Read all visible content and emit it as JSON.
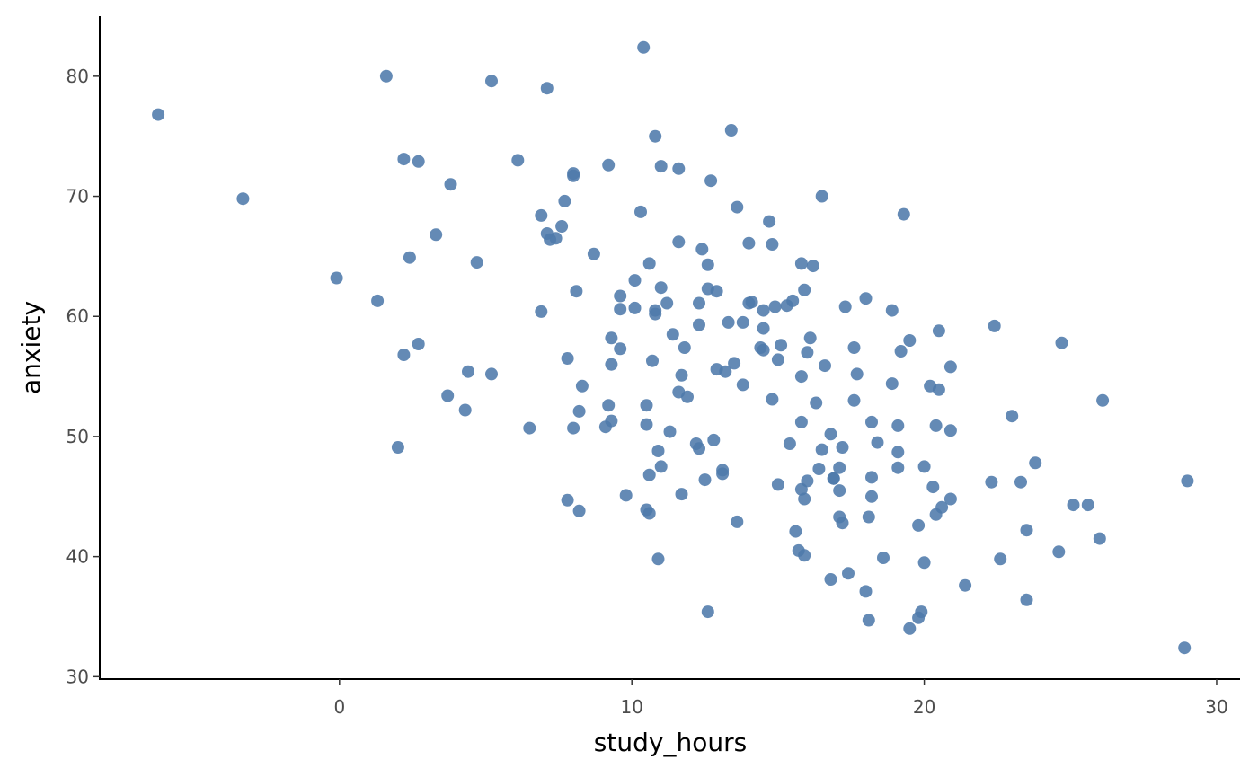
{
  "colors": {
    "point": "#4f7aab",
    "axis": "#000000",
    "tick_label": "#4d4d4d",
    "background": "#ffffff"
  },
  "chart_data": {
    "type": "scatter",
    "xlabel": "study_hours",
    "ylabel": "anxiety",
    "xlim": [
      -8.2,
      30.8
    ],
    "ylim": [
      29.8,
      85.0
    ],
    "xticks": [
      0,
      10,
      20,
      30
    ],
    "yticks": [
      30,
      40,
      50,
      60,
      70,
      80
    ],
    "grid": false,
    "points": [
      [
        -6.2,
        76.8
      ],
      [
        -3.3,
        69.8
      ],
      [
        -0.1,
        63.2
      ],
      [
        1.3,
        61.3
      ],
      [
        1.6,
        80.0
      ],
      [
        2.0,
        49.1
      ],
      [
        2.2,
        73.1
      ],
      [
        2.2,
        56.8
      ],
      [
        2.4,
        64.9
      ],
      [
        2.7,
        72.9
      ],
      [
        2.7,
        57.7
      ],
      [
        3.3,
        66.8
      ],
      [
        3.7,
        53.4
      ],
      [
        3.8,
        71.0
      ],
      [
        4.3,
        52.2
      ],
      [
        4.4,
        55.4
      ],
      [
        4.7,
        64.5
      ],
      [
        5.2,
        79.6
      ],
      [
        5.2,
        55.2
      ],
      [
        6.1,
        73.0
      ],
      [
        6.5,
        50.7
      ],
      [
        6.9,
        68.4
      ],
      [
        6.9,
        60.4
      ],
      [
        7.1,
        79.0
      ],
      [
        7.1,
        66.9
      ],
      [
        7.2,
        66.4
      ],
      [
        7.4,
        66.5
      ],
      [
        7.6,
        67.5
      ],
      [
        7.7,
        69.6
      ],
      [
        7.8,
        56.5
      ],
      [
        7.8,
        44.7
      ],
      [
        8.0,
        71.9
      ],
      [
        8.0,
        71.7
      ],
      [
        8.0,
        50.7
      ],
      [
        8.1,
        62.1
      ],
      [
        8.2,
        52.1
      ],
      [
        8.2,
        43.8
      ],
      [
        8.3,
        54.2
      ],
      [
        8.7,
        65.2
      ],
      [
        9.1,
        50.8
      ],
      [
        9.2,
        72.6
      ],
      [
        9.2,
        52.6
      ],
      [
        9.3,
        58.2
      ],
      [
        9.3,
        56.0
      ],
      [
        9.3,
        51.3
      ],
      [
        9.6,
        61.7
      ],
      [
        9.6,
        60.6
      ],
      [
        9.6,
        57.3
      ],
      [
        9.8,
        45.1
      ],
      [
        10.1,
        63.0
      ],
      [
        10.1,
        60.7
      ],
      [
        10.3,
        68.7
      ],
      [
        10.4,
        82.4
      ],
      [
        10.5,
        52.6
      ],
      [
        10.5,
        51.0
      ],
      [
        10.5,
        43.9
      ],
      [
        10.6,
        64.4
      ],
      [
        10.6,
        46.8
      ],
      [
        10.6,
        43.6
      ],
      [
        10.7,
        56.3
      ],
      [
        10.8,
        75.0
      ],
      [
        10.8,
        60.5
      ],
      [
        10.8,
        60.2
      ],
      [
        10.9,
        48.8
      ],
      [
        10.9,
        39.8
      ],
      [
        11.0,
        72.5
      ],
      [
        11.0,
        62.4
      ],
      [
        11.0,
        47.5
      ],
      [
        11.2,
        61.1
      ],
      [
        11.3,
        50.4
      ],
      [
        11.4,
        58.5
      ],
      [
        11.6,
        72.3
      ],
      [
        11.6,
        66.2
      ],
      [
        11.6,
        53.7
      ],
      [
        11.7,
        55.1
      ],
      [
        11.7,
        45.2
      ],
      [
        11.8,
        57.4
      ],
      [
        11.9,
        53.3
      ],
      [
        12.2,
        49.4
      ],
      [
        12.3,
        61.1
      ],
      [
        12.3,
        59.3
      ],
      [
        12.3,
        49.0
      ],
      [
        12.4,
        65.6
      ],
      [
        12.5,
        46.4
      ],
      [
        12.6,
        64.3
      ],
      [
        12.6,
        62.3
      ],
      [
        12.6,
        35.4
      ],
      [
        12.7,
        71.3
      ],
      [
        12.8,
        49.7
      ],
      [
        12.9,
        62.1
      ],
      [
        12.9,
        55.6
      ],
      [
        13.1,
        47.2
      ],
      [
        13.1,
        46.9
      ],
      [
        13.2,
        55.4
      ],
      [
        13.3,
        59.5
      ],
      [
        13.4,
        75.5
      ],
      [
        13.5,
        56.1
      ],
      [
        13.6,
        69.1
      ],
      [
        13.6,
        42.9
      ],
      [
        13.8,
        59.5
      ],
      [
        13.8,
        54.3
      ],
      [
        14.0,
        66.1
      ],
      [
        14.0,
        61.1
      ],
      [
        14.1,
        61.2
      ],
      [
        14.4,
        57.4
      ],
      [
        14.5,
        60.5
      ],
      [
        14.5,
        59.0
      ],
      [
        14.5,
        57.2
      ],
      [
        14.7,
        67.9
      ],
      [
        14.8,
        66.0
      ],
      [
        14.8,
        53.1
      ],
      [
        14.9,
        60.8
      ],
      [
        15.0,
        56.4
      ],
      [
        15.0,
        46.0
      ],
      [
        15.1,
        57.6
      ],
      [
        15.3,
        60.9
      ],
      [
        15.4,
        49.4
      ],
      [
        15.5,
        61.3
      ],
      [
        15.6,
        42.1
      ],
      [
        15.7,
        40.5
      ],
      [
        15.8,
        64.4
      ],
      [
        15.8,
        55.0
      ],
      [
        15.8,
        51.2
      ],
      [
        15.8,
        45.6
      ],
      [
        15.9,
        62.2
      ],
      [
        15.9,
        44.8
      ],
      [
        15.9,
        40.1
      ],
      [
        16.0,
        57.0
      ],
      [
        16.0,
        46.3
      ],
      [
        16.1,
        58.2
      ],
      [
        16.2,
        64.2
      ],
      [
        16.3,
        52.8
      ],
      [
        16.4,
        47.3
      ],
      [
        16.5,
        70.0
      ],
      [
        16.5,
        48.9
      ],
      [
        16.6,
        55.9
      ],
      [
        16.8,
        50.2
      ],
      [
        16.8,
        38.1
      ],
      [
        16.9,
        46.5
      ],
      [
        16.9,
        46.5
      ],
      [
        17.1,
        47.4
      ],
      [
        17.1,
        45.5
      ],
      [
        17.1,
        43.3
      ],
      [
        17.2,
        49.1
      ],
      [
        17.2,
        42.8
      ],
      [
        17.3,
        60.8
      ],
      [
        17.4,
        38.6
      ],
      [
        17.6,
        57.4
      ],
      [
        17.6,
        53.0
      ],
      [
        17.7,
        55.2
      ],
      [
        18.0,
        61.5
      ],
      [
        18.0,
        37.1
      ],
      [
        18.1,
        43.3
      ],
      [
        18.1,
        34.7
      ],
      [
        18.2,
        51.2
      ],
      [
        18.2,
        46.6
      ],
      [
        18.2,
        45.0
      ],
      [
        18.4,
        49.5
      ],
      [
        18.6,
        39.9
      ],
      [
        18.9,
        60.5
      ],
      [
        18.9,
        54.4
      ],
      [
        19.1,
        50.9
      ],
      [
        19.1,
        48.7
      ],
      [
        19.1,
        47.4
      ],
      [
        19.2,
        57.1
      ],
      [
        19.3,
        68.5
      ],
      [
        19.5,
        58.0
      ],
      [
        19.5,
        34.0
      ],
      [
        19.8,
        42.6
      ],
      [
        19.8,
        34.9
      ],
      [
        19.9,
        35.4
      ],
      [
        20.0,
        47.5
      ],
      [
        20.0,
        39.5
      ],
      [
        20.2,
        54.2
      ],
      [
        20.3,
        45.8
      ],
      [
        20.4,
        50.9
      ],
      [
        20.4,
        43.5
      ],
      [
        20.5,
        58.8
      ],
      [
        20.5,
        53.9
      ],
      [
        20.6,
        44.1
      ],
      [
        20.9,
        55.8
      ],
      [
        20.9,
        50.5
      ],
      [
        20.9,
        44.8
      ],
      [
        21.4,
        37.6
      ],
      [
        22.3,
        46.2
      ],
      [
        22.4,
        59.2
      ],
      [
        22.6,
        39.8
      ],
      [
        23.0,
        51.7
      ],
      [
        23.3,
        46.2
      ],
      [
        23.5,
        42.2
      ],
      [
        23.5,
        36.4
      ],
      [
        23.8,
        47.8
      ],
      [
        24.6,
        40.4
      ],
      [
        24.7,
        57.8
      ],
      [
        25.1,
        44.3
      ],
      [
        25.6,
        44.3
      ],
      [
        26.0,
        41.5
      ],
      [
        26.1,
        53.0
      ],
      [
        28.9,
        32.4
      ],
      [
        29.0,
        46.3
      ]
    ]
  }
}
